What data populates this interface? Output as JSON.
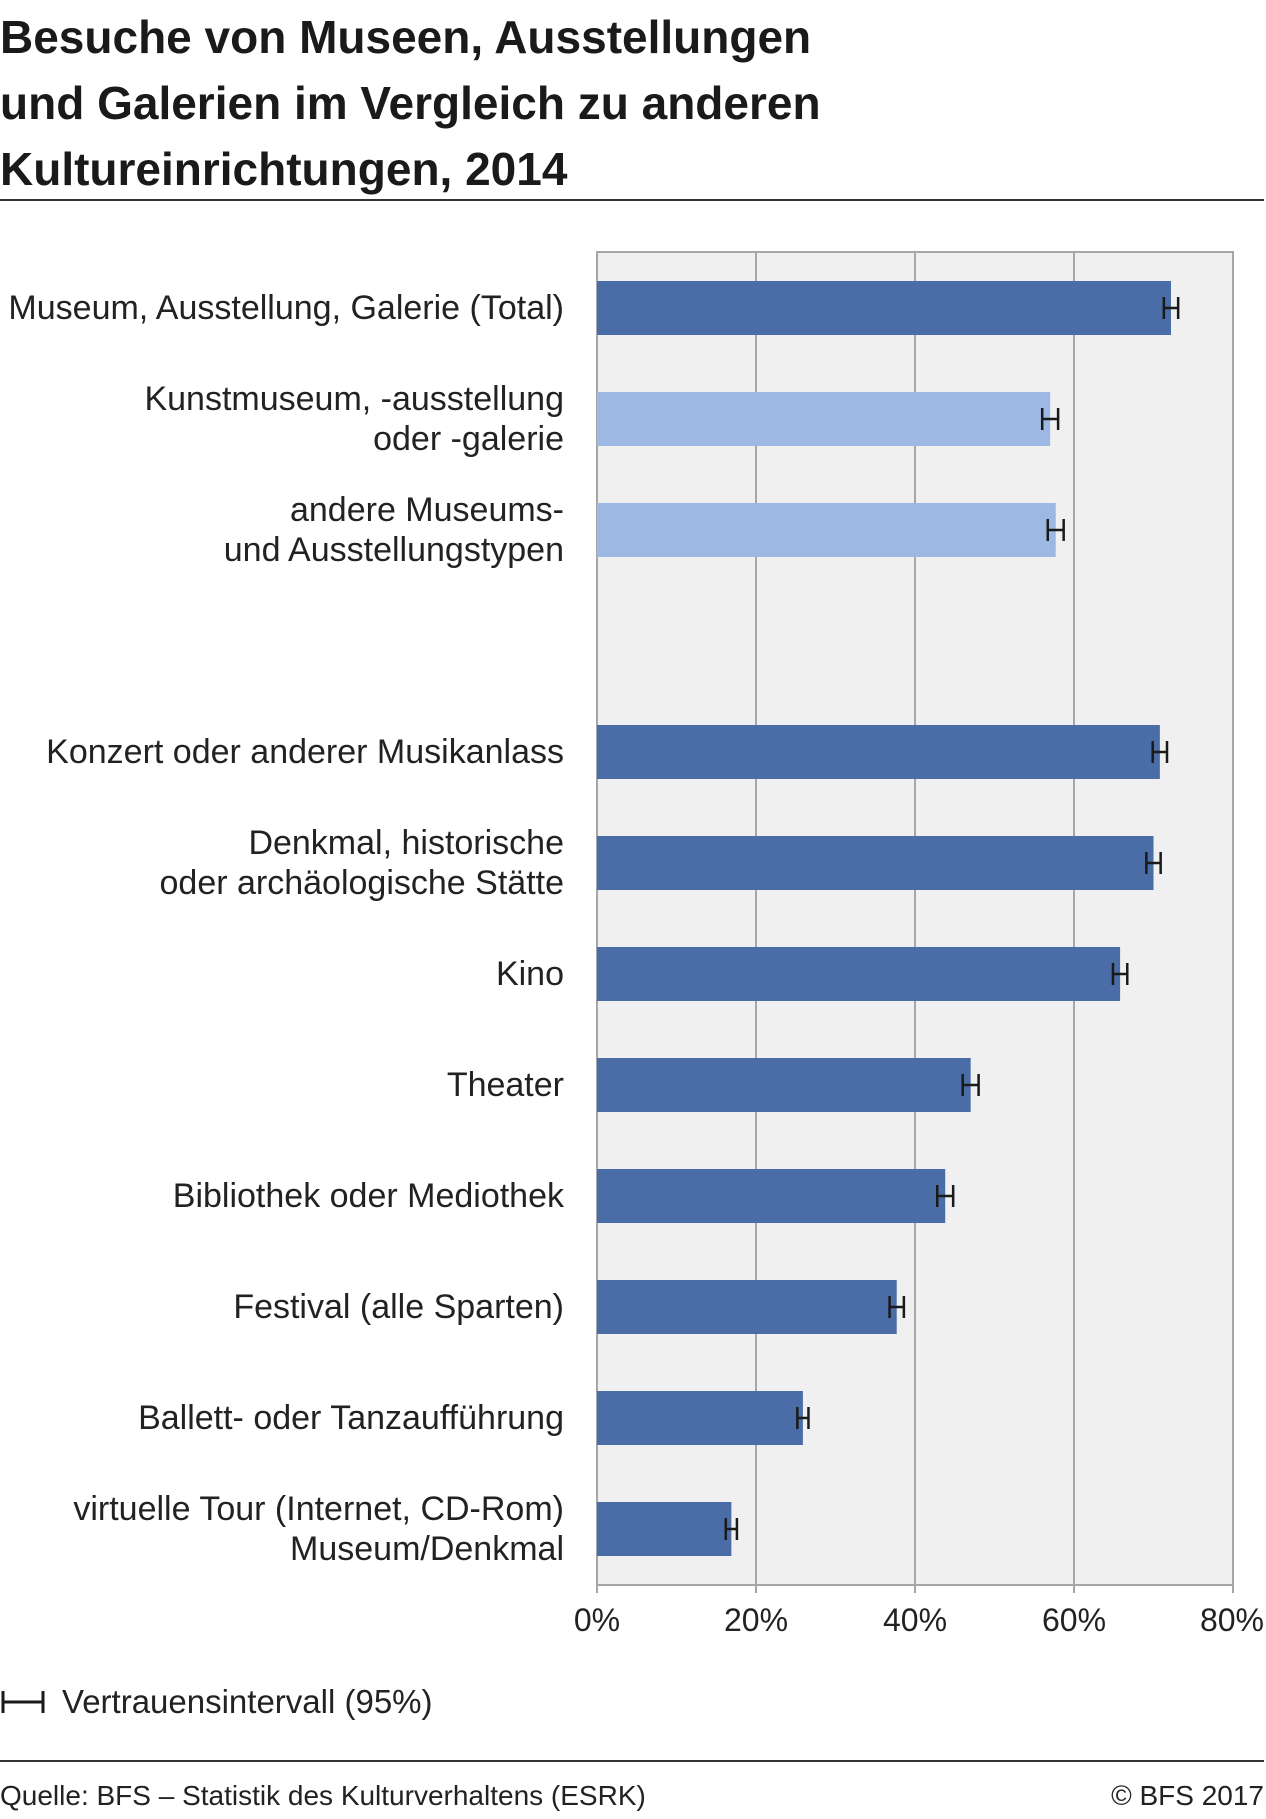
{
  "header": {
    "title_lines": [
      "Besuche von Museen, Ausstellungen",
      "und Galerien im Vergleich zu anderen",
      "Kultureinrichtungen, 2014"
    ]
  },
  "chart_data": {
    "type": "bar",
    "orientation": "horizontal",
    "title": "Besuche von Museen, Ausstellungen und Galerien im Vergleich zu anderen Kultureinrichtungen, 2014",
    "xlabel": "",
    "ylabel": "",
    "xlim": [
      0,
      80
    ],
    "xticks": [
      0,
      20,
      40,
      60,
      80
    ],
    "xtick_labels": [
      "0%",
      "20%",
      "40%",
      "60%",
      "80%"
    ],
    "grid": true,
    "legend_position": "bottom-left",
    "colors": {
      "total": "#4a6da7",
      "sub": "#9db8e3",
      "plot_bg": "#f0f0f0",
      "grid": "#a6a6a6"
    },
    "categories": [
      {
        "label_lines": [
          "Museum, Ausstellung, Galerie (Total)"
        ],
        "value": 72.2,
        "ci": [
          71.3,
          73.1
        ],
        "style": "total",
        "slot": 0
      },
      {
        "label_lines": [
          "Kunstmuseum, -ausstellung",
          "oder -galerie"
        ],
        "value": 57.0,
        "ci": [
          56.0,
          58.0
        ],
        "style": "sub",
        "slot": 1
      },
      {
        "label_lines": [
          "andere Museums-",
          "und Ausstellungstypen"
        ],
        "value": 57.7,
        "ci": [
          56.7,
          58.7
        ],
        "style": "sub",
        "slot": 2
      },
      {
        "label_lines": [
          "Konzert oder anderer Musikanlass"
        ],
        "value": 70.8,
        "ci": [
          69.9,
          71.7
        ],
        "style": "total",
        "slot": 4
      },
      {
        "label_lines": [
          "Denkmal, historische",
          "oder archäologische Stätte"
        ],
        "value": 70.0,
        "ci": [
          69.1,
          70.9
        ],
        "style": "total",
        "slot": 5
      },
      {
        "label_lines": [
          "Kino"
        ],
        "value": 65.8,
        "ci": [
          64.9,
          66.7
        ],
        "style": "total",
        "slot": 6
      },
      {
        "label_lines": [
          "Theater"
        ],
        "value": 47.0,
        "ci": [
          46.0,
          48.0
        ],
        "style": "total",
        "slot": 7
      },
      {
        "label_lines": [
          "Bibliothek oder Mediothek"
        ],
        "value": 43.8,
        "ci": [
          42.8,
          44.8
        ],
        "style": "total",
        "slot": 8
      },
      {
        "label_lines": [
          "Festival (alle Sparten)"
        ],
        "value": 37.7,
        "ci": [
          36.8,
          38.6
        ],
        "style": "total",
        "slot": 9
      },
      {
        "label_lines": [
          "Ballett- oder Tanzaufführung"
        ],
        "value": 25.9,
        "ci": [
          25.2,
          26.6
        ],
        "style": "total",
        "slot": 10
      },
      {
        "label_lines": [
          "virtuelle Tour (Internet, CD-Rom)",
          "Museum/Denkmal"
        ],
        "value": 16.9,
        "ci": [
          16.2,
          17.6
        ],
        "style": "total",
        "slot": 11
      }
    ],
    "legend": {
      "label": "Vertrauensintervall (95%)"
    }
  },
  "footer": {
    "source": "Quelle: BFS – Statistik des Kulturverhaltens (ESRK)",
    "copyright": "© BFS 2017"
  }
}
